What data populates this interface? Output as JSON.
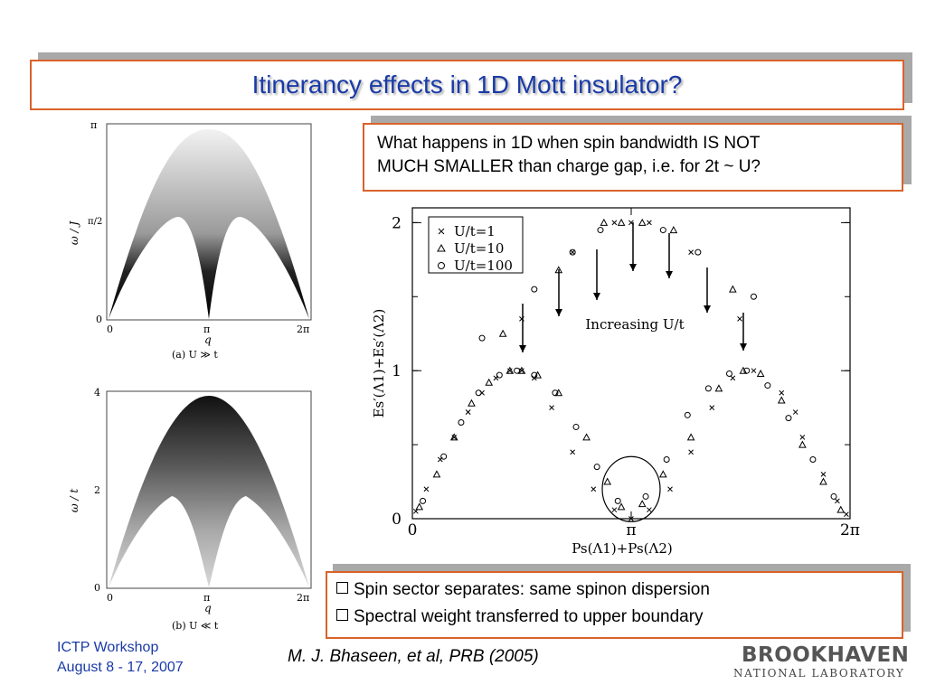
{
  "title": "Itinerancy effects in 1D Mott insulator?",
  "question": {
    "line1": "What happens in 1D when spin bandwidth IS NOT",
    "line2": "MUCH SMALLER than charge gap, i.e. for 2t ~ U?"
  },
  "bullets": [
    "Spin sector separates: same spinon dispersion",
    "Spectral weight transferred to upper boundary"
  ],
  "footer": {
    "line1": "ICTP Workshop",
    "line2": "August 8 - 17, 2007"
  },
  "citation": "M. J. Bhaseen, et al, PRB (2005)",
  "logo": {
    "line1": "BROOKHAVEN",
    "line2": "NATIONAL LABORATORY"
  },
  "colors": {
    "title": "#1a3aa7",
    "border": "#d9622b",
    "shadow": "#a9a9a9"
  },
  "plot_a": {
    "ylabel": "ω / J",
    "yticks": [
      "π",
      "π/2",
      "0"
    ],
    "xticks": [
      "0",
      "π",
      "2π"
    ],
    "xlabel": "q",
    "caption": "(a) U ≫ t"
  },
  "plot_b": {
    "ylabel": "ω / t",
    "yticks": [
      "4",
      "2",
      "0"
    ],
    "xticks": [
      "0",
      "π",
      "2π"
    ],
    "xlabel": "q",
    "caption": "(b) U ≪ t"
  },
  "chart_data": {
    "type": "scatter",
    "xlabel": "Ps(Λ1)+Ps(Λ2)",
    "ylabel": "Es′(Λ1)+Es′(Λ2)",
    "xticks": [
      "0",
      "π",
      "2π"
    ],
    "yticks": [
      "0",
      "1",
      "2"
    ],
    "xlim": [
      0,
      6.2832
    ],
    "ylim": [
      0,
      2.1
    ],
    "annotation": "Increasing U/t",
    "legend_position": "top-left",
    "series": [
      {
        "name": "U/t=1",
        "marker": "x",
        "x": [
          0.05,
          0.2,
          0.4,
          0.6,
          0.8,
          1.0,
          1.2,
          1.4,
          1.57,
          1.75,
          2.0,
          2.3,
          2.6,
          2.9,
          3.14,
          3.4,
          3.7,
          4.0,
          4.3,
          4.6,
          4.9,
          5.3,
          5.6,
          5.9,
          6.1,
          6.23,
          0.8,
          1.57,
          2.3,
          2.9,
          3.14,
          3.4,
          4.0,
          4.7,
          5.5
        ],
        "y": [
          0.05,
          0.2,
          0.4,
          0.55,
          0.72,
          0.85,
          0.95,
          1.0,
          1.0,
          0.95,
          0.75,
          0.45,
          0.2,
          0.06,
          0.0,
          0.06,
          0.2,
          0.45,
          0.75,
          0.95,
          1.0,
          0.85,
          0.55,
          0.3,
          0.12,
          0.03,
          0.72,
          1.35,
          1.8,
          2.0,
          2.0,
          2.0,
          1.8,
          1.35,
          0.72
        ]
      },
      {
        "name": "U/t=10",
        "marker": "triangle",
        "x": [
          0.1,
          0.35,
          0.6,
          0.85,
          1.1,
          1.4,
          1.57,
          1.8,
          2.1,
          2.5,
          2.8,
          3.0,
          3.3,
          3.6,
          4.0,
          4.4,
          4.75,
          5.0,
          5.3,
          5.6,
          5.9,
          6.15,
          1.3,
          2.1,
          2.75,
          3.0,
          3.3,
          3.75,
          4.6
        ],
        "y": [
          0.08,
          0.3,
          0.55,
          0.78,
          0.92,
          1.0,
          1.0,
          0.97,
          0.85,
          0.55,
          0.25,
          0.08,
          0.1,
          0.3,
          0.55,
          0.88,
          1.0,
          0.98,
          0.8,
          0.5,
          0.25,
          0.06,
          1.25,
          1.68,
          2.0,
          2.0,
          2.0,
          1.95,
          1.55
        ]
      },
      {
        "name": "U/t=100",
        "marker": "circle",
        "x": [
          0.15,
          0.45,
          0.7,
          0.95,
          1.25,
          1.5,
          1.75,
          2.05,
          2.35,
          2.65,
          2.95,
          3.35,
          3.65,
          3.95,
          4.25,
          4.55,
          4.8,
          5.1,
          5.4,
          5.75,
          6.05,
          1.0,
          1.75,
          2.3,
          2.7,
          3.6,
          4.1,
          4.9
        ],
        "y": [
          0.12,
          0.42,
          0.65,
          0.85,
          0.97,
          1.0,
          0.97,
          0.85,
          0.62,
          0.35,
          0.12,
          0.15,
          0.4,
          0.7,
          0.88,
          0.98,
          1.0,
          0.9,
          0.68,
          0.4,
          0.15,
          1.22,
          1.55,
          1.8,
          1.95,
          1.95,
          1.8,
          1.5
        ]
      }
    ]
  }
}
